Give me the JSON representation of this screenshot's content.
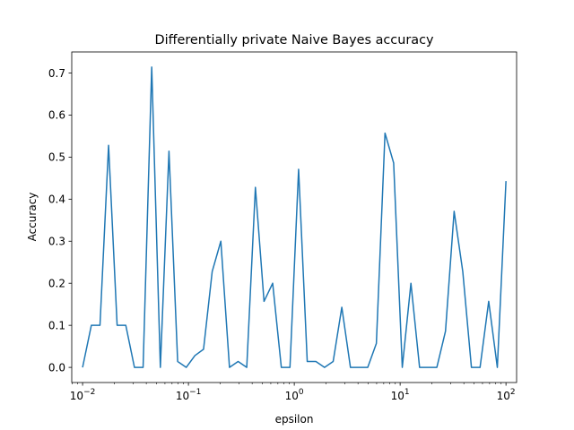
{
  "chart_data": {
    "type": "line",
    "title": "Differentially private Naive Bayes accuracy",
    "xlabel": "epsilon",
    "ylabel": "Accuracy",
    "xscale": "log",
    "xlim": [
      0.0079,
      126
    ],
    "ylim": [
      -0.036,
      0.75
    ],
    "grid": false,
    "line_color": "#1f77b4",
    "x_ticks": [
      {
        "value": 0.01,
        "base": "10",
        "exp": "−2"
      },
      {
        "value": 0.1,
        "base": "10",
        "exp": "−1"
      },
      {
        "value": 1,
        "base": "10",
        "exp": "0"
      },
      {
        "value": 10,
        "base": "10",
        "exp": "1"
      },
      {
        "value": 100,
        "base": "10",
        "exp": "2"
      }
    ],
    "y_ticks": [
      {
        "value": 0.0,
        "label": "0.0"
      },
      {
        "value": 0.1,
        "label": "0.1"
      },
      {
        "value": 0.2,
        "label": "0.2"
      },
      {
        "value": 0.3,
        "label": "0.3"
      },
      {
        "value": 0.4,
        "label": "0.4"
      },
      {
        "value": 0.5,
        "label": "0.5"
      },
      {
        "value": 0.6,
        "label": "0.6"
      },
      {
        "value": 0.7,
        "label": "0.7"
      }
    ],
    "series": [
      {
        "x": [
          0.01,
          0.0121,
          0.0146,
          0.0176,
          0.0212,
          0.0256,
          0.0309,
          0.0373,
          0.045,
          0.0543,
          0.0655,
          0.0791,
          0.0954,
          0.1151,
          0.1389,
          0.1677,
          0.2024,
          0.2442,
          0.2947,
          0.3556,
          0.4292,
          0.5179,
          0.625,
          0.7543,
          0.9103,
          1.0985,
          1.3257,
          1.5999,
          1.9307,
          2.33,
          2.8118,
          3.3932,
          4.0949,
          4.9417,
          5.9636,
          7.1969,
          8.6851,
          10.4811,
          12.6486,
          15.2642,
          18.4207,
          22.23,
          26.827,
          32.375,
          39.069,
          47.149,
          56.899,
          68.665,
          82.864,
          100.0
        ],
        "y": [
          0.0,
          0.1,
          0.1,
          0.528,
          0.1,
          0.1,
          0.0,
          0.0,
          0.714,
          0.0,
          0.514,
          0.014,
          0.0,
          0.028,
          0.043,
          0.228,
          0.3,
          0.0,
          0.014,
          0.0,
          0.428,
          0.157,
          0.2,
          0.0,
          0.0,
          0.471,
          0.014,
          0.014,
          0.0,
          0.014,
          0.143,
          0.0,
          0.0,
          0.0,
          0.057,
          0.557,
          0.486,
          0.0,
          0.2,
          0.0,
          0.0,
          0.0,
          0.086,
          0.371,
          0.228,
          0.0,
          0.0,
          0.157,
          0.0,
          0.443
        ]
      }
    ]
  }
}
